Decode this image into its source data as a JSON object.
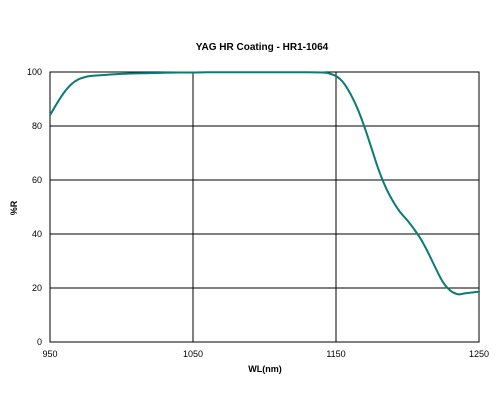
{
  "chart_data": {
    "type": "line",
    "title": "YAG HR Coating - HR1-1064",
    "xlabel": "WL(nm)",
    "ylabel": "%R",
    "xlim": [
      950,
      1250
    ],
    "ylim": [
      0,
      100
    ],
    "xticks": [
      950,
      1050,
      1150,
      1250
    ],
    "yticks": [
      0,
      20,
      40,
      60,
      80,
      100
    ],
    "grid": true,
    "color": "#0a7b76",
    "series": [
      {
        "x": [
          950,
          955,
          960,
          965,
          970,
          975,
          980,
          990,
          1000,
          1010,
          1020,
          1030,
          1040,
          1050,
          1060,
          1070,
          1080,
          1090,
          1100,
          1110,
          1120,
          1130,
          1140,
          1145,
          1150,
          1153,
          1156,
          1160,
          1165,
          1170,
          1175,
          1180,
          1185,
          1190,
          1195,
          1200,
          1205,
          1210,
          1215,
          1220,
          1225,
          1230,
          1235,
          1238,
          1240,
          1243,
          1246,
          1250
        ],
        "y": [
          84,
          88.5,
          92.5,
          95.5,
          97.3,
          98.2,
          98.6,
          99.0,
          99.3,
          99.5,
          99.6,
          99.7,
          99.8,
          99.8,
          99.9,
          99.9,
          99.9,
          99.9,
          99.9,
          99.9,
          99.9,
          99.9,
          99.8,
          99.5,
          98.5,
          97.3,
          95.5,
          92,
          86.5,
          79.5,
          71.5,
          63.5,
          57,
          52,
          48,
          45,
          41.5,
          37.5,
          32.5,
          27,
          22,
          19,
          17.7,
          17.8,
          18.0,
          18.2,
          18.4,
          18.6
        ]
      }
    ]
  }
}
